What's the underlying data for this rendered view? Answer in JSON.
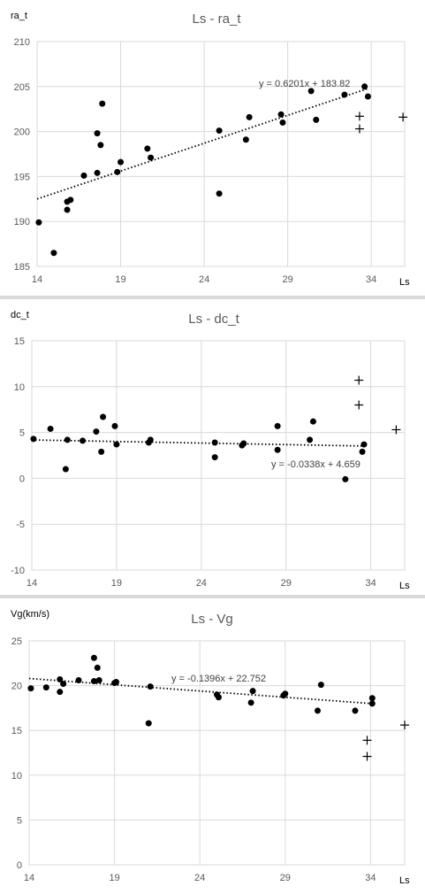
{
  "chart_data": [
    {
      "type": "scatter",
      "title": "Ls - ra_t",
      "xlabel": "Ls",
      "ylabel": "ra_t",
      "xlim": [
        14,
        36
      ],
      "ylim": [
        185,
        210
      ],
      "xticks": [
        "14",
        "19",
        "24",
        "29",
        "34"
      ],
      "yticks": [
        "185",
        "190",
        "195",
        "200",
        "205",
        "210"
      ],
      "grid": true,
      "series": [
        {
          "marker": "dot",
          "points": [
            [
              14.1,
              189.9
            ],
            [
              15.0,
              186.5
            ],
            [
              15.8,
              191.3
            ],
            [
              15.8,
              192.2
            ],
            [
              16.0,
              192.4
            ],
            [
              16.8,
              195.1
            ],
            [
              17.6,
              195.4
            ],
            [
              17.6,
              199.8
            ],
            [
              17.8,
              198.5
            ],
            [
              17.9,
              203.1
            ],
            [
              18.8,
              195.5
            ],
            [
              19.0,
              196.6
            ],
            [
              20.6,
              198.1
            ],
            [
              20.8,
              197.1
            ],
            [
              24.9,
              193.1
            ],
            [
              24.9,
              200.1
            ],
            [
              26.5,
              199.1
            ],
            [
              26.7,
              201.6
            ],
            [
              28.6,
              201.9
            ],
            [
              28.7,
              201.0
            ],
            [
              30.4,
              204.5
            ],
            [
              30.7,
              201.3
            ],
            [
              32.4,
              204.1
            ],
            [
              33.6,
              205.0
            ],
            [
              33.8,
              203.9
            ]
          ]
        },
        {
          "marker": "plus",
          "points": [
            [
              33.3,
              201.7
            ],
            [
              33.3,
              200.3
            ],
            [
              35.9,
              201.6
            ]
          ]
        }
      ],
      "trendline": {
        "slope": 0.6201,
        "intercept": 183.82,
        "x_range": [
          14,
          33.8
        ],
        "equation": "y = 0.6201x + 183.82"
      }
    },
    {
      "type": "scatter",
      "title": "Ls - dc_t",
      "xlabel": "Ls",
      "ylabel": "dc_t",
      "xlim": [
        14,
        36
      ],
      "ylim": [
        -10,
        15
      ],
      "xticks": [
        "14",
        "19",
        "24",
        "29",
        "34"
      ],
      "yticks": [
        "-10",
        "-5",
        "0",
        "5",
        "10",
        "15"
      ],
      "grid": true,
      "series": [
        {
          "marker": "dot",
          "points": [
            [
              14.1,
              4.3
            ],
            [
              15.1,
              5.4
            ],
            [
              16.0,
              1.0
            ],
            [
              16.1,
              4.2
            ],
            [
              17.0,
              4.1
            ],
            [
              17.8,
              5.1
            ],
            [
              18.1,
              2.9
            ],
            [
              18.2,
              6.7
            ],
            [
              18.9,
              5.7
            ],
            [
              19.0,
              3.7
            ],
            [
              20.9,
              3.9
            ],
            [
              21.0,
              4.2
            ],
            [
              24.8,
              3.9
            ],
            [
              24.8,
              2.3
            ],
            [
              26.4,
              3.6
            ],
            [
              26.5,
              3.8
            ],
            [
              28.5,
              5.7
            ],
            [
              28.5,
              3.1
            ],
            [
              30.4,
              4.2
            ],
            [
              30.6,
              6.2
            ],
            [
              32.5,
              -0.1
            ],
            [
              33.5,
              2.9
            ],
            [
              33.6,
              3.7
            ]
          ]
        },
        {
          "marker": "plus",
          "points": [
            [
              33.3,
              10.7
            ],
            [
              33.3,
              8.0
            ],
            [
              35.5,
              5.3
            ]
          ]
        }
      ],
      "trendline": {
        "slope": -0.0338,
        "intercept": 4.659,
        "x_range": [
          14,
          33.6
        ],
        "equation": "y = -0.0338x + 4.659"
      }
    },
    {
      "type": "scatter",
      "title": "Ls - Vg",
      "xlabel": "Ls",
      "ylabel": "Vg(km/s)",
      "xlim": [
        14,
        36
      ],
      "ylim": [
        0,
        25
      ],
      "xticks": [
        "14",
        "19",
        "24",
        "29",
        "34"
      ],
      "yticks": [
        "0",
        "5",
        "10",
        "15",
        "20",
        "25"
      ],
      "grid": true,
      "series": [
        {
          "marker": "dot",
          "points": [
            [
              14.1,
              19.7
            ],
            [
              15.0,
              19.8
            ],
            [
              15.8,
              20.7
            ],
            [
              15.8,
              19.3
            ],
            [
              16.0,
              20.2
            ],
            [
              16.9,
              20.6
            ],
            [
              17.8,
              23.1
            ],
            [
              17.8,
              20.5
            ],
            [
              18.0,
              22.0
            ],
            [
              18.1,
              20.6
            ],
            [
              19.0,
              20.3
            ],
            [
              19.1,
              20.4
            ],
            [
              21.0,
              15.8
            ],
            [
              21.1,
              19.9
            ],
            [
              25.0,
              19.0
            ],
            [
              25.1,
              18.7
            ],
            [
              27.0,
              18.1
            ],
            [
              27.1,
              19.4
            ],
            [
              28.9,
              18.9
            ],
            [
              29.0,
              19.1
            ],
            [
              30.9,
              17.2
            ],
            [
              31.1,
              20.1
            ],
            [
              33.1,
              17.2
            ],
            [
              34.1,
              18.6
            ],
            [
              34.1,
              18.0
            ]
          ]
        },
        {
          "marker": "plus",
          "points": [
            [
              33.8,
              13.9
            ],
            [
              33.8,
              12.1
            ],
            [
              36.0,
              15.6
            ]
          ]
        }
      ],
      "trendline": {
        "slope": -0.1396,
        "intercept": 22.752,
        "x_range": [
          14,
          34.1
        ],
        "equation": "y = -0.1396x + 22.752"
      }
    }
  ]
}
